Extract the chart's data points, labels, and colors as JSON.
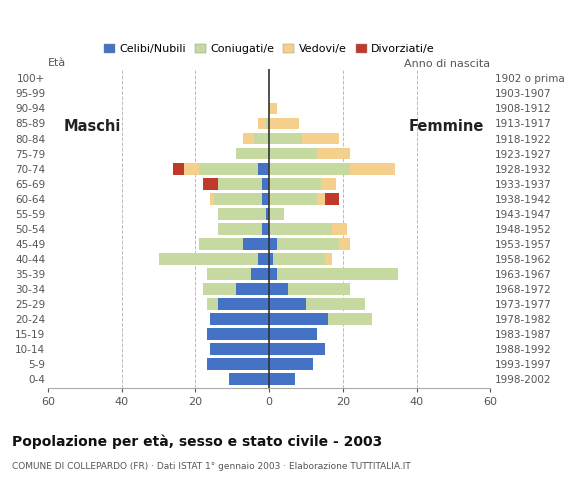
{
  "age_groups": [
    "0-4",
    "5-9",
    "10-14",
    "15-19",
    "20-24",
    "25-29",
    "30-34",
    "35-39",
    "40-44",
    "45-49",
    "50-54",
    "55-59",
    "60-64",
    "65-69",
    "70-74",
    "75-79",
    "80-84",
    "85-89",
    "90-94",
    "95-99",
    "100+"
  ],
  "birth_years": [
    "1998-2002",
    "1993-1997",
    "1988-1992",
    "1983-1987",
    "1978-1982",
    "1973-1977",
    "1968-1972",
    "1963-1967",
    "1958-1962",
    "1953-1957",
    "1948-1952",
    "1943-1947",
    "1938-1942",
    "1933-1937",
    "1928-1932",
    "1923-1927",
    "1918-1922",
    "1913-1917",
    "1908-1912",
    "1903-1907",
    "1902 o prima"
  ],
  "males": {
    "celibi": [
      11,
      17,
      16,
      17,
      16,
      14,
      9,
      5,
      3,
      7,
      2,
      1,
      2,
      2,
      3,
      0,
      0,
      0,
      0,
      0,
      0
    ],
    "coniugati": [
      0,
      0,
      0,
      0,
      0,
      3,
      9,
      12,
      27,
      12,
      12,
      13,
      13,
      12,
      16,
      9,
      4,
      1,
      0,
      0,
      0
    ],
    "vedovi": [
      0,
      0,
      0,
      0,
      0,
      0,
      0,
      0,
      0,
      0,
      0,
      0,
      1,
      0,
      4,
      0,
      3,
      2,
      0,
      0,
      0
    ],
    "divorziati": [
      0,
      0,
      0,
      0,
      0,
      0,
      0,
      0,
      0,
      0,
      0,
      0,
      0,
      4,
      3,
      0,
      0,
      0,
      0,
      0,
      0
    ]
  },
  "females": {
    "nubili": [
      7,
      12,
      15,
      13,
      16,
      10,
      5,
      2,
      1,
      2,
      0,
      0,
      0,
      0,
      0,
      0,
      0,
      0,
      0,
      0,
      0
    ],
    "coniugate": [
      0,
      0,
      0,
      0,
      12,
      16,
      17,
      33,
      14,
      17,
      17,
      4,
      13,
      14,
      22,
      13,
      9,
      0,
      0,
      0,
      0
    ],
    "vedove": [
      0,
      0,
      0,
      0,
      0,
      0,
      0,
      0,
      2,
      3,
      4,
      0,
      2,
      4,
      12,
      9,
      10,
      8,
      2,
      0,
      0
    ],
    "divorziate": [
      0,
      0,
      0,
      0,
      0,
      0,
      0,
      0,
      0,
      0,
      0,
      0,
      4,
      0,
      0,
      0,
      0,
      0,
      0,
      0,
      0
    ]
  },
  "colors": {
    "celibi_nubili": "#4472c4",
    "coniugati": "#c5d9a0",
    "vedovi": "#f5d08c",
    "divorziati": "#c0392b"
  },
  "xlim": 60,
  "title": "Popolazione per età, sesso e stato civile - 2003",
  "subtitle": "COMUNE DI COLLEPARDO (FR) · Dati ISTAT 1° gennaio 2003 · Elaborazione TUTTITALIA.IT",
  "legend_labels": [
    "Celibi/Nubili",
    "Coniugati/e",
    "Vedovi/e",
    "Divorziati/e"
  ],
  "ylabel_left": "Età",
  "ylabel_right": "Anno di nascita",
  "label_maschi": "Maschi",
  "label_femmine": "Femmine"
}
